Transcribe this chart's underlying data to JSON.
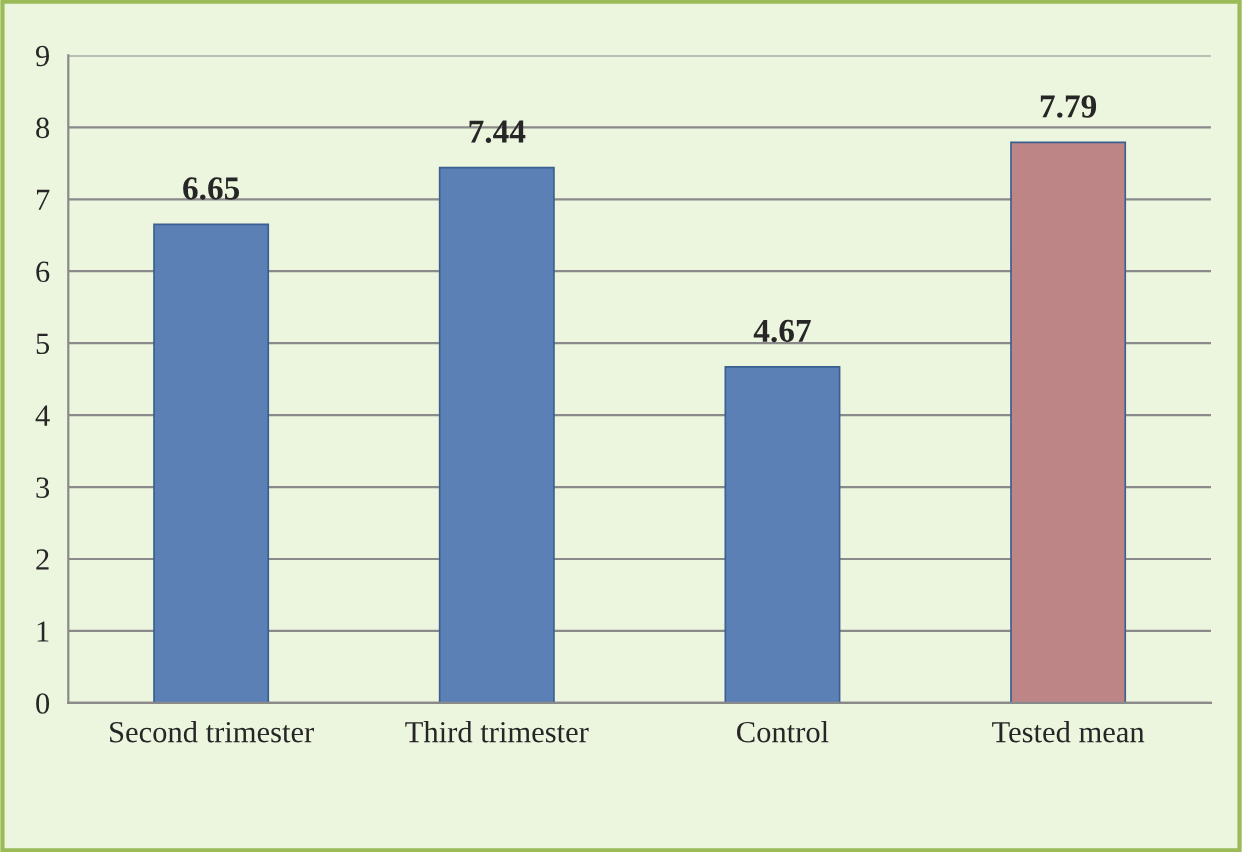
{
  "chart_data": {
    "type": "bar",
    "categories": [
      "Second trimester",
      "Third trimester",
      "Control",
      "Tested mean"
    ],
    "values": [
      6.65,
      7.44,
      4.67,
      7.79
    ],
    "colors": [
      "#4a7ec6",
      "#4a7ec6",
      "#4a7ec6",
      "#c87c7e"
    ],
    "ylim": [
      0,
      9
    ],
    "yticks": [
      0,
      1,
      2,
      3,
      4,
      5,
      6,
      7,
      8,
      9
    ],
    "grid": "y",
    "data_labels": true,
    "legend": false
  }
}
